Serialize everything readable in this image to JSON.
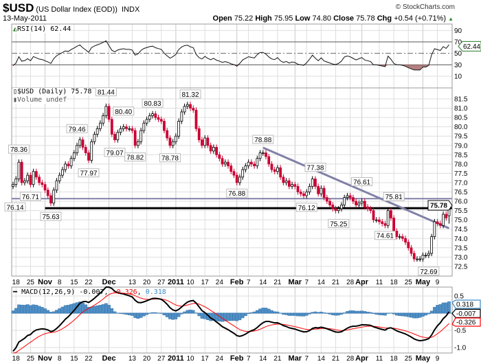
{
  "header": {
    "symbol": "$USD",
    "description": "(US Dollar Index (EOD))",
    "exchange": "INDX",
    "copyright": "© StockCharts.com",
    "date": "13-May-2011",
    "open_label": "Open",
    "open": "75.22",
    "high_label": "High",
    "high": "75.95",
    "low_label": "Low",
    "low": "74.80",
    "close_label": "Close",
    "close": "75.78",
    "chg_label": "Chg",
    "chg": "+0.54 (+0.71%)",
    "chg_icon": "up-triangle-icon"
  },
  "rsi": {
    "legend": "RSI(14) 62.44",
    "value": 62.44,
    "value_label": "62.44",
    "ticks": [
      90,
      70,
      50,
      30,
      10
    ],
    "overbought": 70,
    "oversold": 30,
    "mid": 50
  },
  "price_legend": {
    "main": "$USD (Daily) 75.78",
    "volume": "Volume undef"
  },
  "macd": {
    "legend_name": "MACD(12,26,9)",
    "macd_label": "-0.007",
    "signal_label": "-0.326",
    "hist_label": "0.318",
    "macd": -0.007,
    "signal": -0.326,
    "hist": 0.318,
    "ticks": [
      {
        "v": 0.5,
        "t": "0.5"
      },
      {
        "v": -0.5,
        "t": "-0.5"
      },
      {
        "v": -1.0,
        "t": "-1.0"
      }
    ]
  },
  "colors": {
    "up": "#000000",
    "down": "#cc0033",
    "trendline": "#8080a8",
    "support": "#000000",
    "rsi_fill": "#a06060",
    "hist": "#4f8fc6",
    "signal": "#ff0000",
    "rsi_tag": "#2a7a2a",
    "hist_tag": "#3a8ac8"
  },
  "chart_data": {
    "type": "candlestick",
    "title": "$USD (Daily)",
    "ylim": [
      72.25,
      81.75
    ],
    "yticks": [
      "72.5",
      "73.0",
      "73.5",
      "74.0",
      "74.5",
      "75.0",
      "75.5",
      "76.0",
      "76.5",
      "77.0",
      "77.5",
      "78.0",
      "78.5",
      "79.0",
      "79.5",
      "80.0",
      "80.5",
      "81.0",
      "81.5"
    ],
    "last_close": 75.78,
    "last_close_label": "75.78",
    "last_bar": {
      "open": 75.22,
      "high": 75.95,
      "low": 74.8,
      "close": 75.78
    },
    "closes": [
      76.9,
      77.2,
      78.1,
      77.0,
      77.1,
      77.4,
      76.9,
      77.6,
      77.3,
      77.0,
      76.9,
      76.6,
      76.3,
      75.9,
      76.6,
      77.1,
      77.4,
      77.7,
      78.0,
      77.9,
      78.3,
      78.6,
      79.0,
      79.3,
      78.9,
      78.6,
      78.2,
      79.2,
      79.6,
      79.9,
      80.2,
      80.6,
      81.1,
      80.4,
      79.6,
      79.3,
      79.7,
      79.9,
      80.0,
      79.9,
      79.9,
      79.8,
      79.0,
      79.2,
      79.8,
      80.2,
      80.4,
      80.6,
      80.7,
      80.5,
      80.4,
      80.3,
      79.8,
      79.4,
      79.0,
      79.2,
      79.5,
      80.3,
      80.8,
      81.1,
      81.2,
      81.0,
      80.9,
      79.9,
      79.3,
      79.0,
      79.4,
      79.0,
      78.7,
      78.9,
      78.5,
      78.3,
      78.0,
      78.1,
      77.9,
      77.6,
      77.4,
      77.0,
      77.3,
      77.7,
      77.9,
      78.1,
      78.0,
      77.9,
      78.3,
      78.6,
      78.6,
      78.4,
      78.0,
      77.7,
      77.6,
      77.8,
      77.3,
      77.0,
      77.1,
      76.8,
      76.9,
      76.8,
      76.5,
      76.4,
      76.3,
      76.5,
      76.8,
      77.2,
      76.8,
      76.4,
      76.7,
      76.2,
      76.0,
      75.8,
      75.6,
      75.5,
      75.6,
      75.8,
      76.2,
      76.3,
      76.2,
      76.0,
      75.8,
      75.9,
      76.0,
      75.7,
      75.6,
      75.5,
      75.0,
      75.0,
      74.9,
      74.8,
      74.7,
      75.5,
      75.1,
      74.4,
      74.1,
      74.1,
      74.0,
      73.8,
      73.5,
      73.2,
      72.9,
      72.9,
      72.9,
      73.1,
      73.1,
      73.2,
      74.1,
      74.9,
      74.8,
      74.7,
      75.3,
      75.1,
      75.78
    ],
    "xlabels": [
      {
        "i": 1,
        "t": "18"
      },
      {
        "i": 6,
        "t": "25"
      },
      {
        "i": 11,
        "t": "Nov",
        "bold": true
      },
      {
        "i": 16,
        "t": "8"
      },
      {
        "i": 21,
        "t": "15"
      },
      {
        "i": 26,
        "t": "22"
      },
      {
        "i": 33,
        "t": "Dec",
        "bold": true
      },
      {
        "i": 41,
        "t": "13"
      },
      {
        "i": 46,
        "t": "20"
      },
      {
        "i": 51,
        "t": "27"
      },
      {
        "i": 56,
        "t": "2011",
        "bold": true
      },
      {
        "i": 61,
        "t": "10"
      },
      {
        "i": 66,
        "t": "17"
      },
      {
        "i": 71,
        "t": "24"
      },
      {
        "i": 77,
        "t": "Feb",
        "bold": true
      },
      {
        "i": 81,
        "t": "7"
      },
      {
        "i": 86,
        "t": "14"
      },
      {
        "i": 91,
        "t": "21"
      },
      {
        "i": 97,
        "t": "Mar",
        "bold": true
      },
      {
        "i": 101,
        "t": "7"
      },
      {
        "i": 106,
        "t": "14"
      },
      {
        "i": 111,
        "t": "21"
      },
      {
        "i": 116,
        "t": "28"
      },
      {
        "i": 120,
        "t": "Apr",
        "bold": true
      },
      {
        "i": 126,
        "t": "11"
      },
      {
        "i": 131,
        "t": "18"
      },
      {
        "i": 136,
        "t": "25"
      },
      {
        "i": 141,
        "t": "May",
        "bold": true
      },
      {
        "i": 146,
        "t": "9"
      }
    ],
    "annotations": [
      {
        "i": 0,
        "v": 76.14,
        "t": "76.14",
        "pos": "below"
      },
      {
        "i": 2,
        "v": 78.36,
        "t": "78.36",
        "pos": "above"
      },
      {
        "i": 6,
        "v": 76.71,
        "t": "76.71",
        "pos": "below"
      },
      {
        "i": 13,
        "v": 75.63,
        "t": "75.63",
        "pos": "below"
      },
      {
        "i": 22,
        "v": 79.46,
        "t": "79.46",
        "pos": "above"
      },
      {
        "i": 26,
        "v": 77.97,
        "t": "77.97",
        "pos": "below"
      },
      {
        "i": 32,
        "v": 81.44,
        "t": "81.44",
        "pos": "above"
      },
      {
        "i": 35,
        "v": 79.07,
        "t": "79.07",
        "pos": "below"
      },
      {
        "i": 38,
        "v": 80.4,
        "t": "80.40",
        "pos": "above"
      },
      {
        "i": 42,
        "v": 78.82,
        "t": "78.82",
        "pos": "below"
      },
      {
        "i": 48,
        "v": 80.83,
        "t": "80.83",
        "pos": "above"
      },
      {
        "i": 54,
        "v": 78.78,
        "t": "78.78",
        "pos": "below"
      },
      {
        "i": 61,
        "v": 81.32,
        "t": "81.32",
        "pos": "above"
      },
      {
        "i": 77,
        "v": 76.88,
        "t": "76.88",
        "pos": "below"
      },
      {
        "i": 86,
        "v": 78.88,
        "t": "78.88",
        "pos": "above"
      },
      {
        "i": 104,
        "v": 77.38,
        "t": "77.38",
        "pos": "above"
      },
      {
        "i": 101,
        "v": 76.12,
        "t": "76.12",
        "pos": "below"
      },
      {
        "i": 112,
        "v": 75.25,
        "t": "75.25",
        "pos": "below"
      },
      {
        "i": 120,
        "v": 76.61,
        "t": "76.61",
        "pos": "above"
      },
      {
        "i": 128,
        "v": 74.61,
        "t": "74.61",
        "pos": "below"
      },
      {
        "i": 131,
        "v": 75.81,
        "t": "75.81",
        "pos": "above"
      },
      {
        "i": 143,
        "v": 72.69,
        "t": "72.69",
        "pos": "below"
      }
    ],
    "lines": [
      {
        "name": "resistance-line",
        "i1": 0,
        "v1": 76.14,
        "i2": 151,
        "v2": 76.14,
        "color": "trendline",
        "w": 2
      },
      {
        "name": "support-line",
        "i1": 11,
        "v1": 75.63,
        "i2": 151,
        "v2": 75.63,
        "color": "support",
        "w": 3
      },
      {
        "name": "downtrend-line",
        "i1": 86,
        "v1": 78.88,
        "i2": 150,
        "v2": 74.55,
        "color": "trendline",
        "w": 3
      }
    ]
  }
}
